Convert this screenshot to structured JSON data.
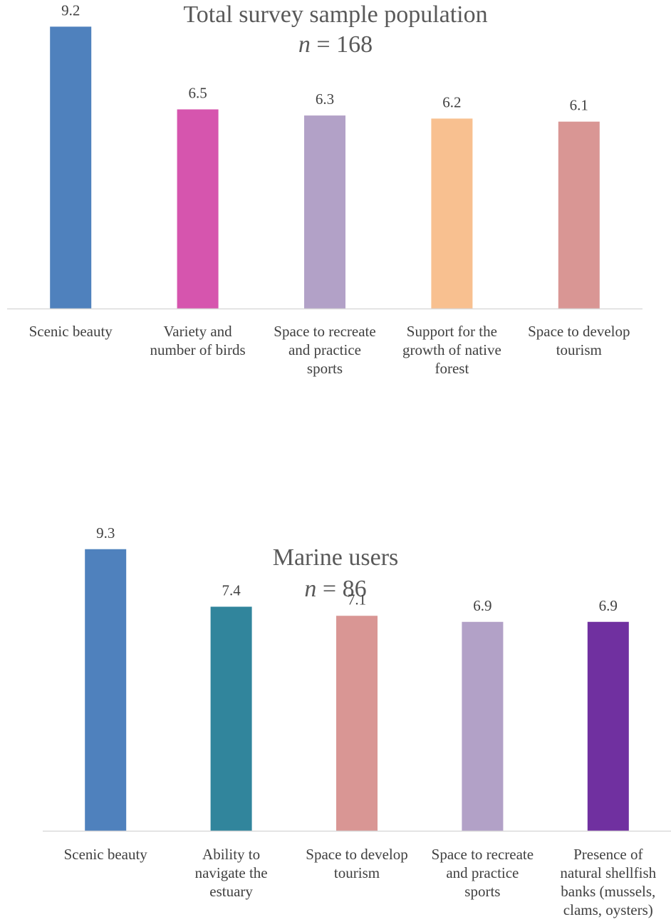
{
  "chart_data": [
    {
      "type": "bar",
      "title": "Total survey sample population",
      "subtitle_var": "n",
      "subtitle_rest": " = 168",
      "categories": [
        "Scenic beauty",
        "Variety and number of birds",
        "Space to recreate and practice sports",
        "Support for the growth of native forest",
        "Space to develop tourism"
      ],
      "category_lines": [
        [
          "Scenic beauty"
        ],
        [
          "Variety and",
          "number of birds"
        ],
        [
          "Space to recreate",
          "and practice",
          "sports"
        ],
        [
          "Support for the",
          "growth of native",
          "forest"
        ],
        [
          "Space to develop",
          "tourism"
        ]
      ],
      "values": [
        9.2,
        6.5,
        6.3,
        6.2,
        6.1
      ],
      "value_labels": [
        "9.2",
        "6.5",
        "6.3",
        "6.2",
        "6.1"
      ],
      "colors": [
        "#4F81BD",
        "#D655AE",
        "#B2A1C7",
        "#F8C090",
        "#D99694"
      ],
      "ylim": [
        0,
        10
      ],
      "grid": false,
      "legend": "none"
    },
    {
      "type": "bar",
      "title": "Marine users",
      "subtitle_var": "n",
      "subtitle_rest": " = 86",
      "categories": [
        "Scenic beauty",
        "Ability to navigate the estuary",
        "Space to develop tourism",
        "Space to recreate and practice sports",
        "Presence of natural shellfish banks (mussels, clams, oysters)"
      ],
      "category_lines": [
        [
          "Scenic beauty"
        ],
        [
          "Ability to",
          "navigate the",
          "estuary"
        ],
        [
          "Space to develop",
          "tourism"
        ],
        [
          "Space to recreate",
          "and practice",
          "sports"
        ],
        [
          "Presence of",
          "natural shellfish",
          "banks (mussels,",
          "clams, oysters)"
        ]
      ],
      "values": [
        9.3,
        7.4,
        7.1,
        6.9,
        6.9
      ],
      "value_labels": [
        "9.3",
        "7.4",
        "7.1",
        "6.9",
        "6.9"
      ],
      "colors": [
        "#4F81BD",
        "#31859C",
        "#D99694",
        "#B2A1C7",
        "#7030A0"
      ],
      "ylim": [
        0,
        10
      ],
      "grid": false,
      "legend": "none"
    }
  ]
}
